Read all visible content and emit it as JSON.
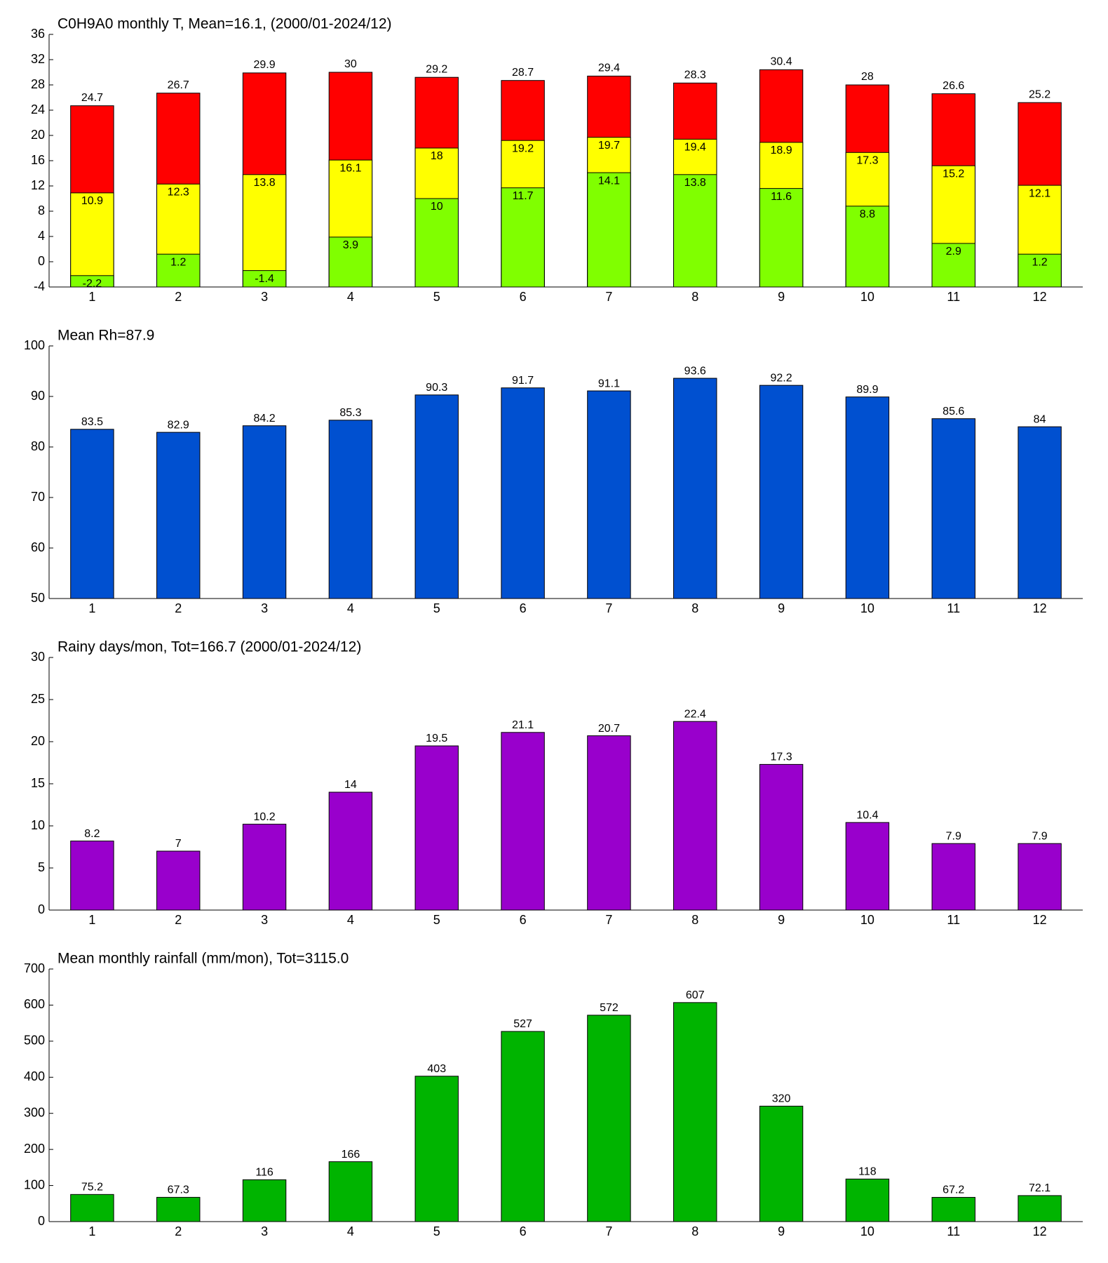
{
  "chart_data": [
    {
      "type": "overlay_bar",
      "title": "C0H9A0 monthly T, Mean=16.1, (2000/01-2024/12)",
      "categories": [
        "1",
        "2",
        "3",
        "4",
        "5",
        "6",
        "7",
        "8",
        "9",
        "10",
        "11",
        "12"
      ],
      "series": [
        {
          "color": "#ff0000",
          "label_pos": "above",
          "values": [
            24.7,
            26.7,
            29.9,
            30,
            29.2,
            28.7,
            29.4,
            28.3,
            30.4,
            28,
            26.6,
            25.2
          ]
        },
        {
          "color": "#ffff00",
          "label_pos": "inside",
          "values": [
            10.9,
            12.3,
            13.8,
            16.1,
            18,
            19.2,
            19.7,
            19.4,
            18.9,
            17.3,
            15.2,
            12.1
          ]
        },
        {
          "color": "#80ff00",
          "label_pos": "inside",
          "values": [
            -2.2,
            1.2,
            -1.4,
            3.9,
            10,
            11.7,
            14.1,
            13.8,
            11.6,
            8.8,
            2.9,
            1.2
          ]
        }
      ],
      "ylim": [
        -4,
        36
      ],
      "yticks": [
        -4,
        0,
        4,
        8,
        12,
        16,
        20,
        24,
        28,
        32,
        36
      ]
    },
    {
      "type": "bar",
      "title": "Mean Rh=87.9",
      "categories": [
        "1",
        "2",
        "3",
        "4",
        "5",
        "6",
        "7",
        "8",
        "9",
        "10",
        "11",
        "12"
      ],
      "values": [
        83.5,
        82.9,
        84.2,
        85.3,
        90.3,
        91.7,
        91.1,
        93.6,
        92.2,
        89.9,
        85.6,
        84
      ],
      "color": "#0050d0",
      "ylim": [
        50,
        100
      ],
      "yticks": [
        50,
        60,
        70,
        80,
        90,
        100
      ]
    },
    {
      "type": "bar",
      "title": "Rainy days/mon, Tot=166.7 (2000/01-2024/12)",
      "categories": [
        "1",
        "2",
        "3",
        "4",
        "5",
        "6",
        "7",
        "8",
        "9",
        "10",
        "11",
        "12"
      ],
      "values": [
        8.2,
        7,
        10.2,
        14,
        19.5,
        21.1,
        20.7,
        22.4,
        17.3,
        10.4,
        7.9,
        7.9
      ],
      "color": "#9900cc",
      "ylim": [
        0,
        30
      ],
      "yticks": [
        0,
        5,
        10,
        15,
        20,
        25,
        30
      ]
    },
    {
      "type": "bar",
      "title": "Mean monthly rainfall (mm/mon), Tot=3115.0",
      "categories": [
        "1",
        "2",
        "3",
        "4",
        "5",
        "6",
        "7",
        "8",
        "9",
        "10",
        "11",
        "12"
      ],
      "values": [
        75.2,
        67.3,
        116,
        166,
        403,
        527,
        572,
        607,
        320,
        118,
        67.2,
        72.1
      ],
      "color": "#00b400",
      "ylim": [
        0,
        700
      ],
      "yticks": [
        0,
        100,
        200,
        300,
        400,
        500,
        600,
        700
      ]
    }
  ]
}
